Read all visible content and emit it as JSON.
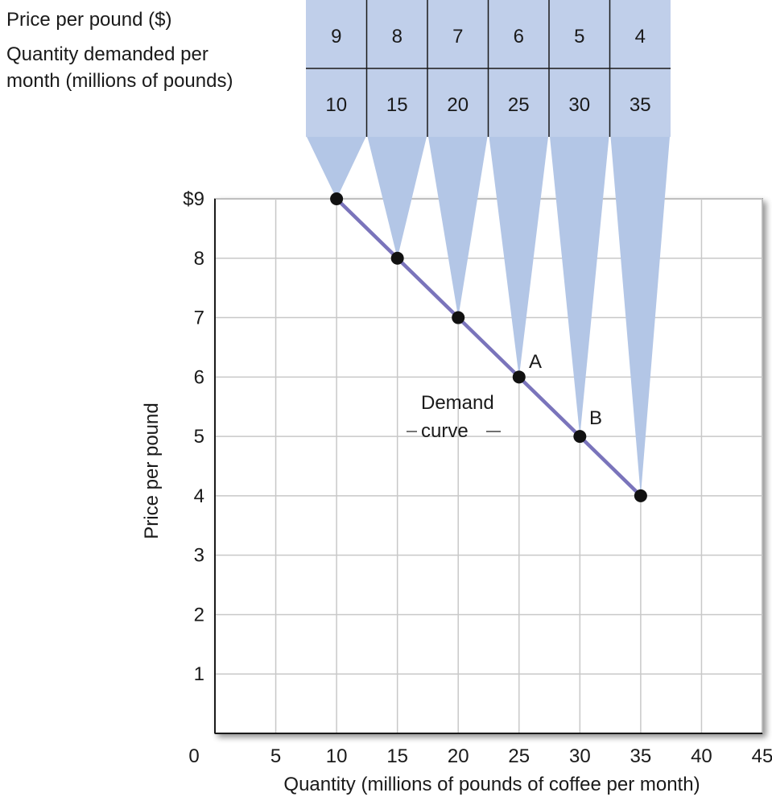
{
  "schedule_table": {
    "row1_label": "Price per pound ($)",
    "row2_label_line1": "Quantity demanded per",
    "row2_label_line2": "month (millions of pounds)",
    "prices": [
      "9",
      "8",
      "7",
      "6",
      "5",
      "4"
    ],
    "quantities": [
      "10",
      "15",
      "20",
      "25",
      "30",
      "35"
    ]
  },
  "chart_data": {
    "type": "line",
    "title": "",
    "xlabel": "Quantity (millions of pounds of coffee per month)",
    "ylabel": "Price per pound",
    "xlim": [
      0,
      45
    ],
    "ylim": [
      0,
      9
    ],
    "x_ticks": [
      "0",
      "5",
      "10",
      "15",
      "20",
      "25",
      "30",
      "35",
      "40",
      "45"
    ],
    "y_ticks": [
      "",
      "1",
      "2",
      "3",
      "4",
      "5",
      "6",
      "7",
      "8",
      "$9"
    ],
    "grid": true,
    "series": [
      {
        "name": "Demand curve",
        "x": [
          10,
          15,
          20,
          25,
          30,
          35
        ],
        "y": [
          9,
          8,
          7,
          6,
          5,
          4
        ]
      }
    ],
    "annotations": {
      "curve_label_line1": "Demand",
      "curve_label_line2": "curve",
      "point_a": "A",
      "point_b": "B"
    },
    "colors": {
      "curve": "#7a74bb",
      "table_fill": "#c0cfea",
      "wedge_fill": "#b3c6e6",
      "grid": "#c8c8c8",
      "points": "#111111"
    }
  }
}
